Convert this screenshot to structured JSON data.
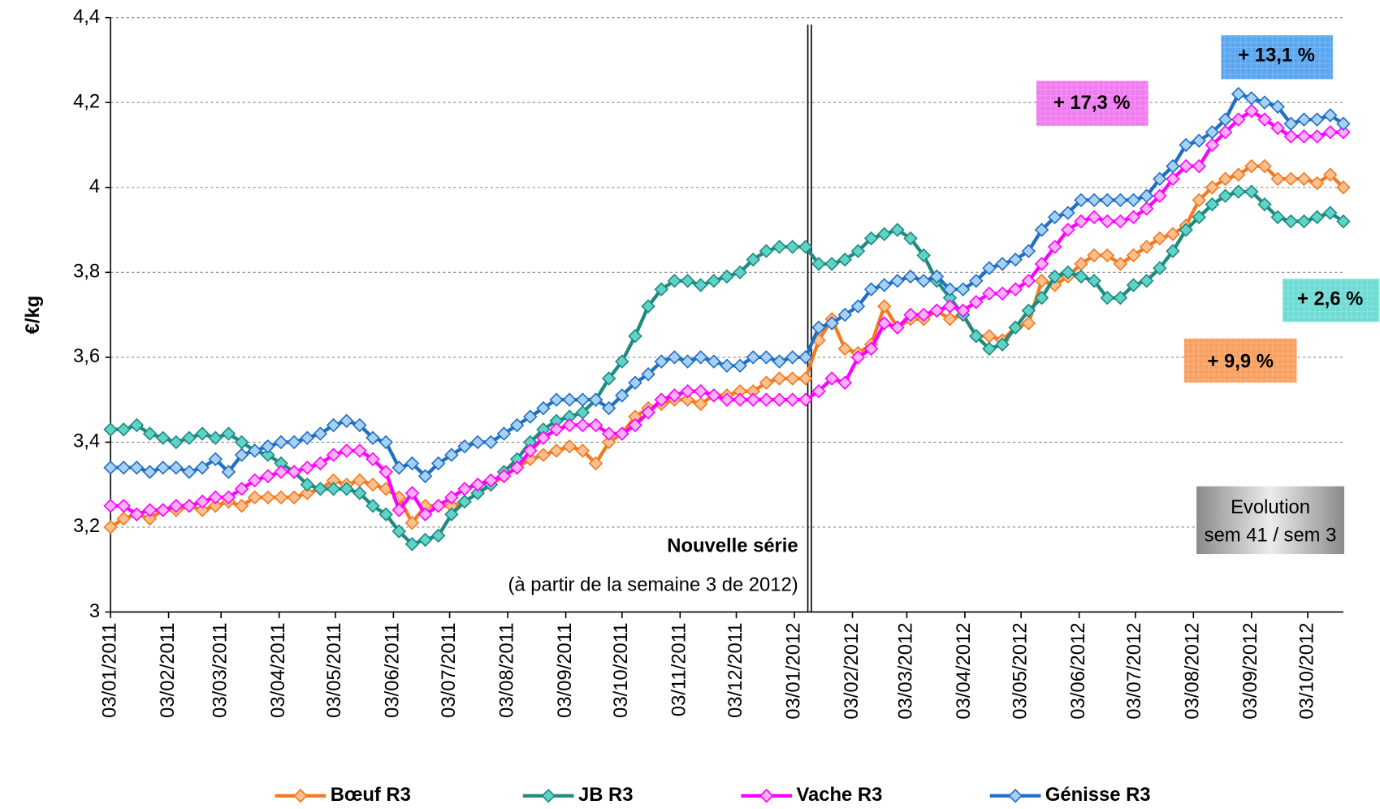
{
  "chart_data": {
    "type": "line",
    "y_label": "€/kg",
    "x": [
      "03/01/2011",
      "10/01/2011",
      "17/01/2011",
      "24/01/2011",
      "31/01/2011",
      "07/02/2011",
      "14/02/2011",
      "21/02/2011",
      "28/02/2011",
      "07/03/2011",
      "14/03/2011",
      "21/03/2011",
      "28/03/2011",
      "04/04/2011",
      "11/04/2011",
      "18/04/2011",
      "25/04/2011",
      "02/05/2011",
      "09/05/2011",
      "16/05/2011",
      "23/05/2011",
      "30/05/2011",
      "06/06/2011",
      "13/06/2011",
      "20/06/2011",
      "27/06/2011",
      "04/07/2011",
      "11/07/2011",
      "18/07/2011",
      "25/07/2011",
      "01/08/2011",
      "08/08/2011",
      "15/08/2011",
      "22/08/2011",
      "29/08/2011",
      "05/09/2011",
      "12/09/2011",
      "19/09/2011",
      "26/09/2011",
      "03/10/2011",
      "10/10/2011",
      "17/10/2011",
      "24/10/2011",
      "31/10/2011",
      "07/11/2011",
      "14/11/2011",
      "21/11/2011",
      "28/11/2011",
      "05/12/2011",
      "12/12/2011",
      "19/12/2011",
      "26/12/2011",
      "02/01/2012",
      "09/01/2012",
      "16/01/2012",
      "23/01/2012",
      "30/01/2012",
      "06/02/2012",
      "13/02/2012",
      "20/02/2012",
      "27/02/2012",
      "05/03/2012",
      "12/03/2012",
      "19/03/2012",
      "26/03/2012",
      "02/04/2012",
      "09/04/2012",
      "16/04/2012",
      "23/04/2012",
      "30/04/2012",
      "07/05/2012",
      "14/05/2012",
      "21/05/2012",
      "28/05/2012",
      "04/06/2012",
      "11/06/2012",
      "18/06/2012",
      "25/06/2012",
      "02/07/2012",
      "09/07/2012",
      "16/07/2012",
      "23/07/2012",
      "30/07/2012",
      "06/08/2012",
      "13/08/2012",
      "20/08/2012",
      "27/08/2012",
      "03/09/2012",
      "10/09/2012",
      "17/09/2012",
      "24/09/2012",
      "01/10/2012",
      "08/10/2012",
      "15/10/2012",
      "22/10/2012"
    ],
    "series": [
      {
        "name": "Bœuf R3",
        "color": "#f47920",
        "marker_color": "#fbc08f",
        "values": [
          3.2,
          3.22,
          3.23,
          3.22,
          3.24,
          3.24,
          3.25,
          3.24,
          3.25,
          3.26,
          3.25,
          3.27,
          3.27,
          3.27,
          3.27,
          3.28,
          3.29,
          3.31,
          3.3,
          3.31,
          3.3,
          3.29,
          3.27,
          3.21,
          3.25,
          3.25,
          3.25,
          3.26,
          3.28,
          3.3,
          3.32,
          3.34,
          3.36,
          3.37,
          3.38,
          3.39,
          3.38,
          3.35,
          3.4,
          3.42,
          3.46,
          3.48,
          3.49,
          3.5,
          3.5,
          3.49,
          3.51,
          3.51,
          3.52,
          3.52,
          3.54,
          3.55,
          3.55,
          3.55,
          3.64,
          3.69,
          3.62,
          3.61,
          3.63,
          3.72,
          3.67,
          3.69,
          3.69,
          3.71,
          3.69,
          3.7,
          3.65,
          3.65,
          3.64,
          3.67,
          3.68,
          3.78,
          3.77,
          3.79,
          3.82,
          3.84,
          3.84,
          3.82,
          3.84,
          3.86,
          3.88,
          3.89,
          3.91,
          3.97,
          4.0,
          4.02,
          4.03,
          4.05,
          4.05,
          4.02,
          4.02,
          4.02,
          4.01,
          4.03,
          4.0
        ]
      },
      {
        "name": "JB R3",
        "color": "#1f8a80",
        "marker_color": "#5fd3c8",
        "values": [
          3.43,
          3.43,
          3.44,
          3.42,
          3.41,
          3.4,
          3.41,
          3.42,
          3.41,
          3.42,
          3.4,
          3.38,
          3.37,
          3.35,
          3.33,
          3.3,
          3.29,
          3.29,
          3.29,
          3.28,
          3.25,
          3.23,
          3.19,
          3.16,
          3.17,
          3.18,
          3.23,
          3.26,
          3.28,
          3.3,
          3.33,
          3.36,
          3.4,
          3.43,
          3.45,
          3.46,
          3.47,
          3.5,
          3.55,
          3.59,
          3.65,
          3.72,
          3.76,
          3.78,
          3.78,
          3.77,
          3.78,
          3.79,
          3.8,
          3.83,
          3.85,
          3.86,
          3.86,
          3.86,
          3.82,
          3.82,
          3.83,
          3.85,
          3.88,
          3.89,
          3.9,
          3.88,
          3.84,
          3.78,
          3.74,
          3.7,
          3.65,
          3.62,
          3.63,
          3.67,
          3.71,
          3.74,
          3.79,
          3.8,
          3.79,
          3.78,
          3.74,
          3.74,
          3.77,
          3.78,
          3.81,
          3.85,
          3.9,
          3.93,
          3.96,
          3.98,
          3.99,
          3.99,
          3.96,
          3.93,
          3.92,
          3.92,
          3.93,
          3.94,
          3.92
        ]
      },
      {
        "name": "Vache R3",
        "color": "#ff00ff",
        "marker_color": "#ffb0ff",
        "values": [
          3.25,
          3.25,
          3.23,
          3.24,
          3.24,
          3.25,
          3.25,
          3.26,
          3.27,
          3.27,
          3.29,
          3.31,
          3.32,
          3.33,
          3.33,
          3.34,
          3.35,
          3.37,
          3.38,
          3.38,
          3.36,
          3.33,
          3.24,
          3.28,
          3.23,
          3.25,
          3.27,
          3.29,
          3.3,
          3.31,
          3.32,
          3.34,
          3.38,
          3.41,
          3.43,
          3.44,
          3.44,
          3.44,
          3.42,
          3.42,
          3.44,
          3.47,
          3.5,
          3.51,
          3.52,
          3.52,
          3.51,
          3.5,
          3.5,
          3.5,
          3.5,
          3.5,
          3.5,
          3.5,
          3.52,
          3.55,
          3.54,
          3.6,
          3.62,
          3.68,
          3.67,
          3.7,
          3.7,
          3.71,
          3.72,
          3.71,
          3.73,
          3.75,
          3.75,
          3.76,
          3.78,
          3.82,
          3.86,
          3.9,
          3.92,
          3.93,
          3.92,
          3.92,
          3.93,
          3.95,
          3.98,
          4.02,
          4.05,
          4.05,
          4.1,
          4.13,
          4.16,
          4.18,
          4.16,
          4.14,
          4.12,
          4.12,
          4.12,
          4.13,
          4.13
        ]
      },
      {
        "name": "Génisse R3",
        "color": "#1f6fc4",
        "marker_color": "#a8d0f5",
        "values": [
          3.34,
          3.34,
          3.34,
          3.33,
          3.34,
          3.34,
          3.33,
          3.34,
          3.36,
          3.33,
          3.37,
          3.38,
          3.39,
          3.4,
          3.4,
          3.41,
          3.42,
          3.44,
          3.45,
          3.44,
          3.41,
          3.4,
          3.34,
          3.35,
          3.32,
          3.35,
          3.37,
          3.39,
          3.4,
          3.4,
          3.42,
          3.44,
          3.46,
          3.48,
          3.5,
          3.5,
          3.5,
          3.5,
          3.48,
          3.51,
          3.54,
          3.56,
          3.59,
          3.6,
          3.59,
          3.6,
          3.59,
          3.58,
          3.58,
          3.6,
          3.6,
          3.59,
          3.6,
          3.6,
          3.67,
          3.68,
          3.7,
          3.72,
          3.76,
          3.77,
          3.78,
          3.79,
          3.78,
          3.79,
          3.76,
          3.76,
          3.78,
          3.81,
          3.82,
          3.83,
          3.85,
          3.9,
          3.93,
          3.94,
          3.97,
          3.97,
          3.97,
          3.97,
          3.97,
          3.98,
          4.02,
          4.05,
          4.1,
          4.11,
          4.13,
          4.16,
          4.22,
          4.21,
          4.2,
          4.19,
          4.15,
          4.16,
          4.16,
          4.17,
          4.15
        ]
      }
    ],
    "xlim": [
      "03/01/2011",
      "22/10/2012"
    ],
    "xticks": [
      "03/01/2011",
      "03/02/2011",
      "03/03/2011",
      "03/04/2011",
      "03/05/2011",
      "03/06/2011",
      "03/07/2011",
      "03/08/2011",
      "03/09/2011",
      "03/10/2011",
      "03/11/2011",
      "03/12/2011",
      "03/01/2012",
      "03/02/2012",
      "03/03/2012",
      "03/04/2012",
      "03/05/2012",
      "03/06/2012",
      "03/07/2012",
      "03/08/2012",
      "03/09/2012",
      "03/10/2012"
    ],
    "ylim": [
      3,
      4.4
    ],
    "yticks": [
      3,
      {
        "value": 3.2,
        "label": "3,2"
      },
      {
        "value": 3.4,
        "label": "3,4"
      },
      {
        "value": 3.6,
        "label": "3,6"
      },
      {
        "value": 3.8,
        "label": "3,8"
      },
      4,
      {
        "value": 4.2,
        "label": "4,2"
      },
      {
        "value": 4.4,
        "label": "4,4"
      }
    ],
    "grid": true,
    "legend": "bottom",
    "annotations": [
      {
        "text": "+ 13,1 %",
        "color": "#5aa6f0"
      },
      {
        "text": "+ 17,3 %",
        "color": "#f07cf0"
      },
      {
        "text": "+ 2,6 %",
        "color": "#6fdcd4"
      },
      {
        "text": "+ 9,9 %",
        "color": "#f8a060"
      },
      {
        "lines": [
          "Evolution",
          "sem 41 / sem 3"
        ],
        "color": "#bdbdbd"
      },
      {
        "text": "Nouvelle série"
      },
      {
        "text": "(à partir de la semaine 3 de 2012)"
      }
    ]
  }
}
